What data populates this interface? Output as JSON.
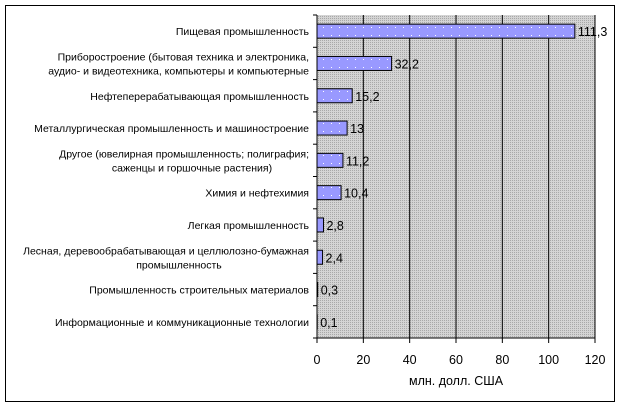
{
  "chart_data": {
    "type": "bar",
    "orientation": "horizontal",
    "categories": [
      [
        "Пищевая промышленность"
      ],
      [
        "Приборостроение (бытовая техника и электроника,",
        "аудио- и видеотехника, компьютеры и компьютерные"
      ],
      [
        "Нефтеперерабатывающая промышленность"
      ],
      [
        "Металлургическая промышленность и машиностроение"
      ],
      [
        "Другое (ювелирная промышленность; полиграфия;",
        "саженцы и горшочные растения)"
      ],
      [
        "Химия и нефтехимия"
      ],
      [
        "Легкая промышленность"
      ],
      [
        "Лесная, деревообрабатывающая и целлюлозно-бумажная",
        "промышленность"
      ],
      [
        "Промышленность строительных материалов"
      ],
      [
        "Информационные и коммуникационные технологии"
      ]
    ],
    "values": [
      111.3,
      32.2,
      15.2,
      13,
      11.2,
      10.4,
      2.8,
      2.4,
      0.3,
      0.1
    ],
    "value_labels": [
      "111,3",
      "32,2",
      "15,2",
      "13",
      "11,2",
      "10,4",
      "2,8",
      "2,4",
      "0,3",
      "0,1"
    ],
    "xlabel": "млн. долл. США",
    "xlim": [
      0,
      120
    ],
    "xticks": [
      "0",
      "20",
      "40",
      "60",
      "80",
      "100",
      "120"
    ],
    "grid": "vertical",
    "legend": "none",
    "colors": {
      "bar": "#9999ff",
      "plot_bg": "#c0c0c0",
      "border": "#000000"
    }
  }
}
